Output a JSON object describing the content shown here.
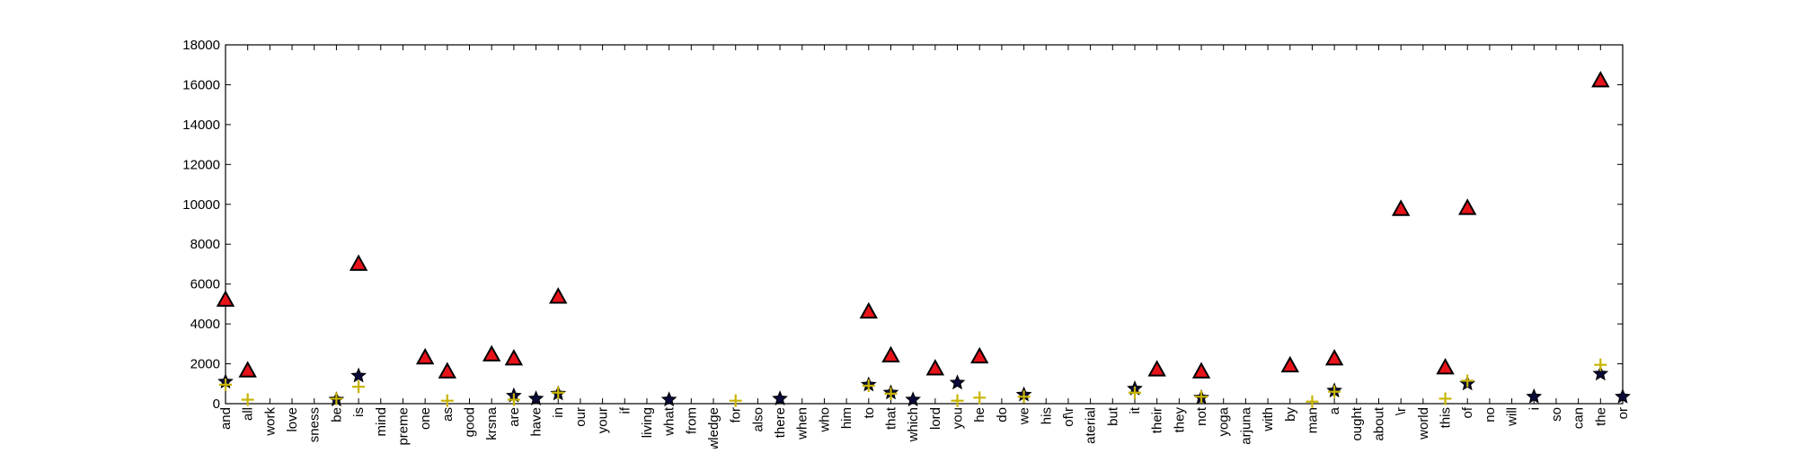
{
  "chart_data": {
    "type": "scatter",
    "title": "",
    "xlabel": "",
    "ylabel": "",
    "ylim": [
      0,
      18000
    ],
    "yticks": [
      0,
      2000,
      4000,
      6000,
      8000,
      10000,
      12000,
      14000,
      16000,
      18000
    ],
    "grid": false,
    "legend": "none",
    "categories": [
      "and",
      "all",
      "work",
      "love",
      "sness",
      "be",
      "is",
      "mind",
      "preme",
      "one",
      "as",
      "good",
      "krsna",
      "are",
      "have",
      "in",
      "our",
      "your",
      "if",
      "living",
      "what",
      "from",
      "wledge",
      "for",
      "also",
      "there",
      "when",
      "who",
      "him",
      "to",
      "that",
      "which",
      "lord",
      "you",
      "he",
      "do",
      "we",
      "his",
      "of\\r",
      "aterial",
      "but",
      "it",
      "their",
      "they",
      "not",
      "yoga",
      "arjuna",
      "with",
      "by",
      "man",
      "a",
      "ought",
      "about",
      "\\r",
      "world",
      "this",
      "of",
      "no",
      "will",
      "i",
      "so",
      "can",
      "the",
      "or"
    ],
    "series": [
      {
        "marker": "triangle",
        "color": "#e8131a",
        "points": [
          {
            "category": "and",
            "value": 5200
          },
          {
            "category": "all",
            "value": 1650
          },
          {
            "category": "is",
            "value": 7000
          },
          {
            "category": "one",
            "value": 2300
          },
          {
            "category": "as",
            "value": 1600
          },
          {
            "category": "krsna",
            "value": 2450
          },
          {
            "category": "are",
            "value": 2250
          },
          {
            "category": "in",
            "value": 5350
          },
          {
            "category": "to",
            "value": 4600
          },
          {
            "category": "that",
            "value": 2400
          },
          {
            "category": "lord",
            "value": 1750
          },
          {
            "category": "he",
            "value": 2350
          },
          {
            "category": "their",
            "value": 1700
          },
          {
            "category": "not",
            "value": 1600
          },
          {
            "category": "by",
            "value": 1900
          },
          {
            "category": "a",
            "value": 2250
          },
          {
            "category": "\\r",
            "value": 9750
          },
          {
            "category": "this",
            "value": 1800
          },
          {
            "category": "of",
            "value": 9800
          },
          {
            "category": "the",
            "value": 16200
          }
        ]
      },
      {
        "marker": "star",
        "color": "#0a0a3a",
        "points": [
          {
            "category": "and",
            "value": 1100
          },
          {
            "category": "be",
            "value": 200
          },
          {
            "category": "is",
            "value": 1400
          },
          {
            "category": "are",
            "value": 400
          },
          {
            "category": "have",
            "value": 250
          },
          {
            "category": "in",
            "value": 500
          },
          {
            "category": "what",
            "value": 200
          },
          {
            "category": "there",
            "value": 250
          },
          {
            "category": "to",
            "value": 950
          },
          {
            "category": "that",
            "value": 550
          },
          {
            "category": "which",
            "value": 200
          },
          {
            "category": "you",
            "value": 1050
          },
          {
            "category": "we",
            "value": 450
          },
          {
            "category": "it",
            "value": 750
          },
          {
            "category": "not",
            "value": 300
          },
          {
            "category": "a",
            "value": 650
          },
          {
            "category": "of",
            "value": 1000
          },
          {
            "category": "i",
            "value": 350
          },
          {
            "category": "the",
            "value": 1500
          },
          {
            "category": "or",
            "value": 350
          }
        ]
      },
      {
        "marker": "plus",
        "color": "#c8b400",
        "points": [
          {
            "category": "and",
            "value": 950
          },
          {
            "category": "all",
            "value": 200
          },
          {
            "category": "be",
            "value": 250
          },
          {
            "category": "is",
            "value": 850
          },
          {
            "category": "as",
            "value": 150
          },
          {
            "category": "are",
            "value": 200
          },
          {
            "category": "in",
            "value": 550
          },
          {
            "category": "for",
            "value": 150
          },
          {
            "category": "to",
            "value": 900
          },
          {
            "category": "that",
            "value": 500
          },
          {
            "category": "you",
            "value": 150
          },
          {
            "category": "he",
            "value": 300
          },
          {
            "category": "we",
            "value": 350
          },
          {
            "category": "it",
            "value": 550
          },
          {
            "category": "not",
            "value": 350
          },
          {
            "category": "man",
            "value": 100
          },
          {
            "category": "a",
            "value": 600
          },
          {
            "category": "this",
            "value": 250
          },
          {
            "category": "of",
            "value": 1150
          },
          {
            "category": "the",
            "value": 1950
          }
        ]
      }
    ]
  }
}
